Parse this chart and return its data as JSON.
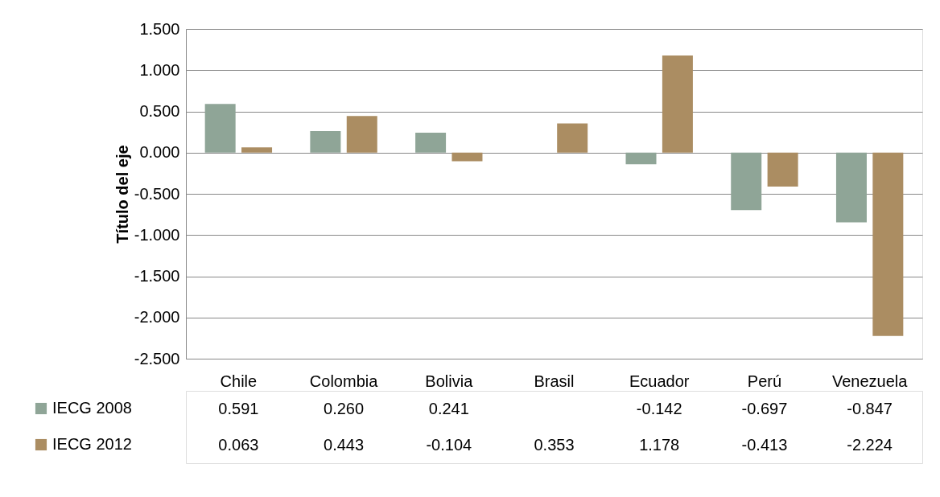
{
  "chart_data": {
    "type": "bar",
    "ylabel": "Título del eje",
    "categories": [
      "Chile",
      "Colombia",
      "Bolivia",
      "Brasil",
      "Ecuador",
      "Perú",
      "Venezuela"
    ],
    "series": [
      {
        "name": "IECG 2008",
        "color": "#8fa597",
        "values": [
          0.591,
          0.26,
          0.241,
          null,
          -0.142,
          -0.697,
          -0.847
        ],
        "value_labels": [
          "0.591",
          "0.260",
          "0.241",
          null,
          "-0.142",
          "-0.697",
          "-0.847"
        ]
      },
      {
        "name": "IECG 2012",
        "color": "#ab8d62",
        "values": [
          0.063,
          0.443,
          -0.104,
          0.353,
          1.178,
          -0.413,
          -2.224
        ],
        "value_labels": [
          "0.063",
          "0.443",
          "-0.104",
          "0.353",
          "1.178",
          "-0.413",
          "-2.224"
        ]
      }
    ],
    "ylim": [
      -2.5,
      1.5
    ],
    "yticks": [
      {
        "value": 1.5,
        "label": "1.500"
      },
      {
        "value": 1.0,
        "label": "1.000"
      },
      {
        "value": 0.5,
        "label": "0.500"
      },
      {
        "value": 0,
        "label": "0.000"
      },
      {
        "value": -0.5,
        "label": "-0.500"
      },
      {
        "value": -1.0,
        "label": "-1.000"
      },
      {
        "value": -1.5,
        "label": "-1.500"
      },
      {
        "value": -2.0,
        "label": "-2.000"
      },
      {
        "value": -2.5,
        "label": "-2.500"
      }
    ],
    "grid": "y",
    "legend": "bottom left"
  }
}
